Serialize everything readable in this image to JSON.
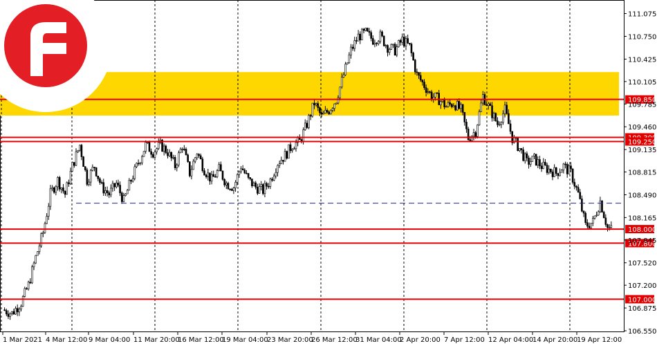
{
  "chart_data": {
    "type": "candlestick",
    "title": "",
    "ylim": [
      106.55,
      111.13
    ],
    "y_ticks": [
      "111.075",
      "110.750",
      "110.425",
      "110.105",
      "109.785",
      "109.460",
      "109.135",
      "108.815",
      "108.490",
      "108.165",
      "107.845",
      "107.520",
      "107.200",
      "106.875",
      "106.550"
    ],
    "x_tick_labels": [
      "1 Mar 2021",
      "4 Mar 12:00",
      "9 Mar 04:00",
      "11 Mar 20:00",
      "16 Mar 12:00",
      "19 Mar 04:00",
      "23 Mar 20:00",
      "26 Mar 12:00",
      "31 Mar 04:00",
      "2 Apr 20:00",
      "7 Apr 12:00",
      "12 Apr 04:00",
      "14 Apr 20:00",
      "19 Apr 12:00"
    ],
    "support_resistance_levels": [
      {
        "value": 109.85,
        "label": "109.850",
        "color": "#e00000"
      },
      {
        "value": 109.309,
        "label": "109.309",
        "color": "#e00000"
      },
      {
        "value": 109.25,
        "label": "109.250",
        "color": "#e00000"
      },
      {
        "value": 108.0,
        "label": "108.000",
        "color": "#e00000"
      },
      {
        "value": 107.8,
        "label": "107.800",
        "color": "#e00000"
      },
      {
        "value": 107.0,
        "label": "107.000",
        "color": "#e00000"
      }
    ],
    "dashed_level": 108.37,
    "zone": {
      "from": 109.62,
      "to": 110.24,
      "color": "#ffd700"
    },
    "close_path": [
      [
        0,
        106.85
      ],
      [
        5,
        106.8
      ],
      [
        10,
        106.95
      ],
      [
        14,
        107.2
      ],
      [
        18,
        107.6
      ],
      [
        22,
        107.95
      ],
      [
        26,
        108.5
      ],
      [
        30,
        108.7
      ],
      [
        34,
        108.5
      ],
      [
        38,
        108.9
      ],
      [
        42,
        109.2
      ],
      [
        46,
        108.7
      ],
      [
        50,
        108.9
      ],
      [
        54,
        108.6
      ],
      [
        58,
        108.5
      ],
      [
        62,
        108.65
      ],
      [
        66,
        108.4
      ],
      [
        70,
        108.7
      ],
      [
        74,
        108.95
      ],
      [
        78,
        109.2
      ],
      [
        82,
        109.1
      ],
      [
        86,
        109.2
      ],
      [
        90,
        109.1
      ],
      [
        94,
        108.9
      ],
      [
        98,
        109.2
      ],
      [
        102,
        108.8
      ],
      [
        106,
        109.1
      ],
      [
        110,
        108.85
      ],
      [
        114,
        108.7
      ],
      [
        118,
        108.85
      ],
      [
        122,
        108.65
      ],
      [
        126,
        108.6
      ],
      [
        130,
        108.9
      ],
      [
        134,
        108.7
      ],
      [
        138,
        108.6
      ],
      [
        142,
        108.55
      ],
      [
        146,
        108.7
      ],
      [
        150,
        108.95
      ],
      [
        154,
        109.05
      ],
      [
        158,
        109.2
      ],
      [
        162,
        109.25
      ],
      [
        166,
        109.5
      ],
      [
        170,
        109.8
      ],
      [
        174,
        109.6
      ],
      [
        178,
        109.7
      ],
      [
        182,
        109.85
      ],
      [
        186,
        110.2
      ],
      [
        190,
        110.55
      ],
      [
        194,
        110.75
      ],
      [
        198,
        110.8
      ],
      [
        202,
        110.7
      ],
      [
        206,
        110.75
      ],
      [
        210,
        110.6
      ],
      [
        214,
        110.55
      ],
      [
        218,
        110.7
      ],
      [
        222,
        110.6
      ],
      [
        226,
        110.2
      ],
      [
        230,
        110.05
      ],
      [
        234,
        109.9
      ],
      [
        238,
        109.85
      ],
      [
        242,
        109.75
      ],
      [
        246,
        109.8
      ],
      [
        250,
        109.7
      ],
      [
        254,
        109.3
      ],
      [
        258,
        109.4
      ],
      [
        262,
        109.9
      ],
      [
        266,
        109.7
      ],
      [
        270,
        109.5
      ],
      [
        274,
        109.7
      ],
      [
        278,
        109.3
      ],
      [
        282,
        109.15
      ],
      [
        286,
        108.95
      ],
      [
        290,
        109.0
      ],
      [
        294,
        108.9
      ],
      [
        298,
        108.85
      ],
      [
        302,
        108.8
      ],
      [
        306,
        108.9
      ],
      [
        310,
        108.8
      ],
      [
        314,
        108.5
      ],
      [
        318,
        108.05
      ],
      [
        322,
        108.1
      ],
      [
        326,
        108.4
      ],
      [
        330,
        108.02
      ],
      [
        332,
        108.0
      ]
    ]
  }
}
